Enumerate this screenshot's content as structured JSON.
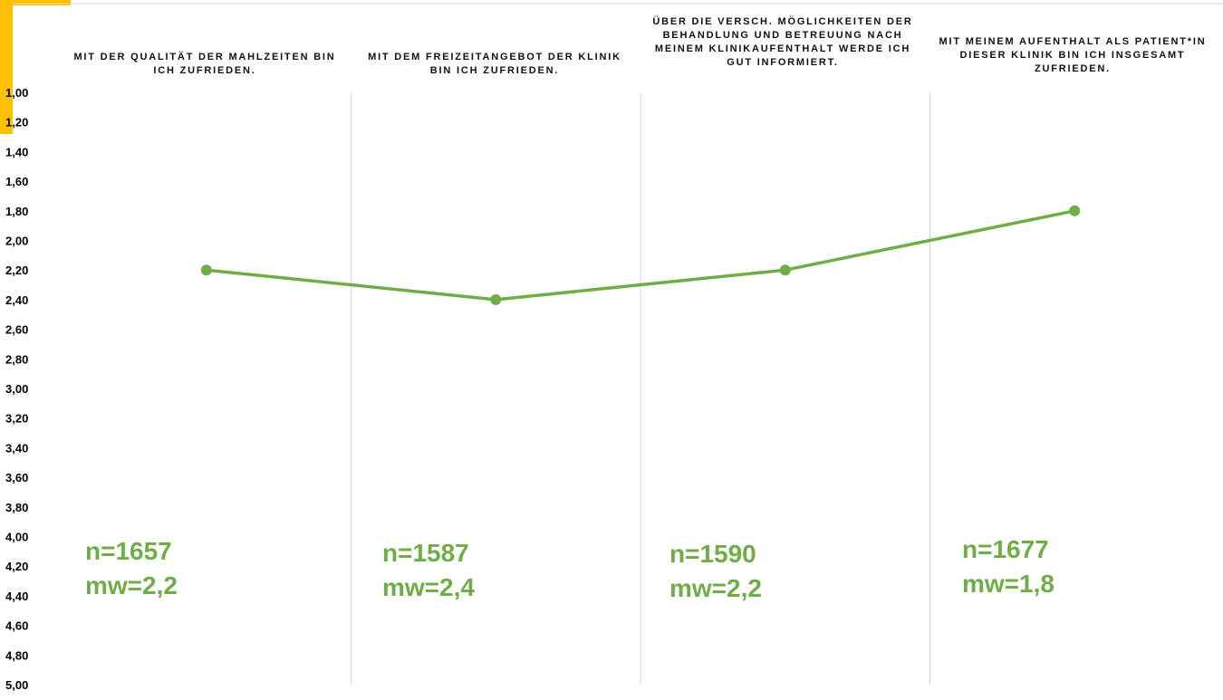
{
  "chart_data": {
    "type": "line",
    "categories": [
      "MIT DER QUALITÄT DER MAHLZEITEN BIN ICH ZUFRIEDEN.",
      "MIT DEM FREIZEITANGEBOT DER KLINIK BIN ICH ZUFRIEDEN.",
      "ÜBER DIE VERSCH. MÖGLICHKEITEN DER BEHANDLUNG UND BETREUUNG NACH MEINEM KLINIKAUFENTHALT WERDE ICH GUT INFORMIERT.",
      "MIT MEINEM AUFENTHALT ALS PATIENT*IN DIESER KLINIK BIN ICH INSGESAMT ZUFRIEDEN."
    ],
    "series": [
      {
        "values": [
          2.2,
          2.4,
          2.2,
          1.8
        ]
      }
    ],
    "ylim": [
      1.0,
      5.0
    ],
    "y_reversed": true,
    "yticks": [
      "1,00",
      "1,20",
      "1,40",
      "1,60",
      "1,80",
      "2,00",
      "2,20",
      "2,40",
      "2,60",
      "2,80",
      "3,00",
      "3,20",
      "3,40",
      "3,60",
      "3,80",
      "4,00",
      "4,20",
      "4,40",
      "4,60",
      "4,80",
      "5,00"
    ],
    "annotations": [
      {
        "n": "n=1657",
        "mw": "mw=2,2"
      },
      {
        "n": "n=1587",
        "mw": "mw=2,4"
      },
      {
        "n": "n=1590",
        "mw": "mw=2,2"
      },
      {
        "n": "n=1677",
        "mw": "mw=1,8"
      }
    ],
    "grid": "vertical",
    "colors": {
      "line": "#70AD47",
      "grid": "#D9D9D9",
      "accent": "#FFC000"
    }
  }
}
